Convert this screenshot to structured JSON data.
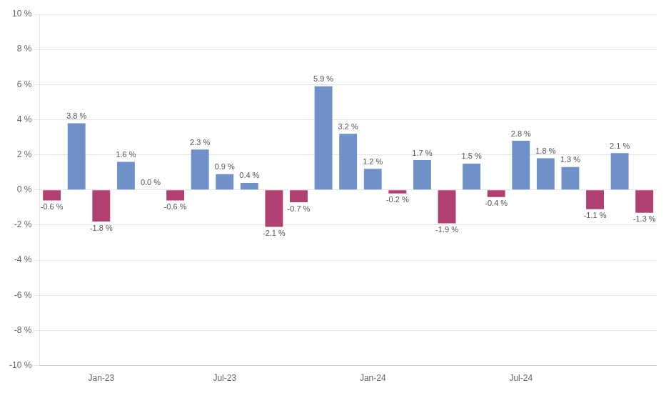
{
  "chart_data": {
    "type": "bar",
    "categories": [
      null,
      null,
      "Jan-23",
      null,
      null,
      null,
      null,
      "Jul-23",
      null,
      null,
      null,
      null,
      null,
      "Jan-24",
      null,
      null,
      null,
      null,
      null,
      "Jul-24",
      null,
      null,
      null,
      null,
      null
    ],
    "values": [
      -0.6,
      3.8,
      -1.8,
      1.6,
      0.0,
      -0.6,
      2.3,
      0.9,
      0.4,
      -2.1,
      -0.7,
      5.9,
      3.2,
      1.2,
      -0.2,
      1.7,
      -1.9,
      1.5,
      -0.4,
      2.8,
      1.8,
      1.3,
      -1.1,
      2.1,
      -1.3
    ],
    "value_labels": [
      "-0.6 %",
      "3.8 %",
      "-1.8 %",
      "1.6 %",
      "0.0 %",
      "-0.6 %",
      "2.3 %",
      "0.9 %",
      "0.4 %",
      "-2.1 %",
      "-0.7 %",
      "5.9 %",
      "3.2 %",
      "1.2 %",
      "-0.2 %",
      "1.7 %",
      "-1.9 %",
      "1.5 %",
      "-0.4 %",
      "2.8 %",
      "1.8 %",
      "1.3 %",
      "-1.1 %",
      "2.1 %",
      "-1.3 %"
    ],
    "colors": [
      "#b04070",
      "#7090c8",
      "#b04070",
      "#7090c8",
      "#7090c8",
      "#b04070",
      "#7090c8",
      "#7090c8",
      "#7090c8",
      "#b04070",
      "#b04070",
      "#7090c8",
      "#7090c8",
      "#7090c8",
      "#b04070",
      "#7090c8",
      "#b04070",
      "#7090c8",
      "#b04070",
      "#7090c8",
      "#7090c8",
      "#7090c8",
      "#b04070",
      "#7090c8",
      "#b04070"
    ],
    "ylim": [
      -10,
      10
    ],
    "yticks": [
      {
        "value": -10,
        "label": "-10 %"
      },
      {
        "value": -8,
        "label": "-8 %"
      },
      {
        "value": -6,
        "label": "-6 %"
      },
      {
        "value": -4,
        "label": "-4 %"
      },
      {
        "value": -2,
        "label": "-2 %"
      },
      {
        "value": 0,
        "label": "0 %"
      },
      {
        "value": 2,
        "label": "2 %"
      },
      {
        "value": 4,
        "label": "4 %"
      },
      {
        "value": 6,
        "label": "6 %"
      },
      {
        "value": 8,
        "label": "8 %"
      },
      {
        "value": 10,
        "label": "10 %"
      }
    ],
    "grid": true,
    "data_labels": true
  }
}
